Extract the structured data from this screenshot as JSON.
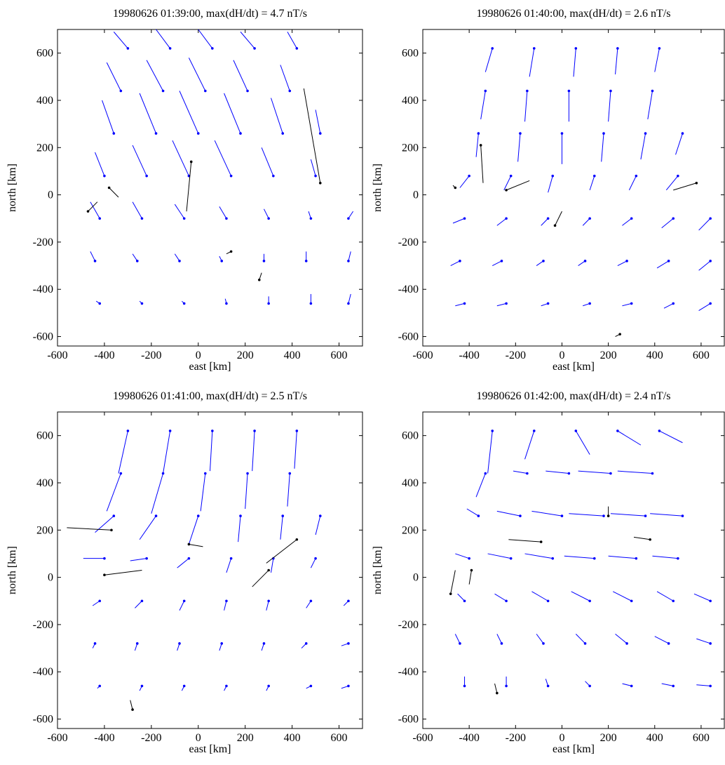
{
  "chart_data": [
    {
      "type": "quiver",
      "title": "19980626 01:39:00, max(dH/dt) = 4.7 nT/s",
      "xlabel": "east [km]",
      "ylabel": "north [km]",
      "xlim": [
        -600,
        700
      ],
      "ylim": [
        -640,
        700
      ],
      "xticks": [
        -600,
        -400,
        -200,
        0,
        200,
        400,
        600
      ],
      "yticks": [
        -600,
        -400,
        -200,
        0,
        200,
        400,
        600
      ],
      "series": [
        {
          "color": "#0000ff",
          "x": [
            -300,
            -120,
            60,
            240,
            420,
            -330,
            -150,
            30,
            210,
            390,
            -360,
            -180,
            0,
            180,
            360,
            520,
            -400,
            -220,
            -40,
            140,
            320,
            500,
            -420,
            -240,
            -60,
            120,
            300,
            480,
            640,
            -440,
            -260,
            -80,
            100,
            280,
            460,
            640,
            -420,
            -240,
            -60,
            120,
            300,
            480,
            640
          ],
          "y": [
            620,
            620,
            620,
            620,
            620,
            440,
            440,
            440,
            440,
            440,
            260,
            260,
            260,
            260,
            260,
            260,
            80,
            80,
            80,
            80,
            80,
            80,
            -100,
            -100,
            -100,
            -100,
            -100,
            -100,
            -100,
            -280,
            -280,
            -280,
            -280,
            -280,
            -280,
            -280,
            -460,
            -460,
            -460,
            -460,
            -460,
            -460,
            -460
          ],
          "u": [
            -60,
            -60,
            -60,
            -60,
            -40,
            -60,
            -70,
            -70,
            -60,
            -40,
            -50,
            -70,
            -80,
            -70,
            -50,
            -20,
            -40,
            -60,
            -70,
            -70,
            -50,
            -20,
            -40,
            -40,
            -40,
            -30,
            -20,
            -10,
            20,
            -20,
            -20,
            -20,
            -10,
            0,
            0,
            10,
            -15,
            -10,
            -10,
            -5,
            0,
            0,
            10
          ],
          "v": [
            70,
            80,
            80,
            70,
            70,
            120,
            130,
            140,
            130,
            110,
            140,
            170,
            180,
            170,
            150,
            100,
            100,
            130,
            150,
            150,
            120,
            70,
            70,
            70,
            60,
            50,
            40,
            30,
            30,
            40,
            30,
            30,
            20,
            30,
            40,
            40,
            10,
            10,
            10,
            20,
            30,
            40,
            40
          ]
        },
        {
          "color": "#000000",
          "x": [
            -470,
            -380,
            520,
            -30,
            140,
            260
          ],
          "y": [
            -70,
            30,
            50,
            140,
            -240,
            -360
          ],
          "u": [
            40,
            40,
            -70,
            -20,
            -20,
            10
          ],
          "v": [
            40,
            -40,
            400,
            -210,
            -10,
            30
          ]
        }
      ]
    },
    {
      "type": "quiver",
      "title": "19980626 01:40:00, max(dH/dt) = 2.6 nT/s",
      "xlabel": "east [km]",
      "ylabel": "north [km]",
      "xlim": [
        -600,
        700
      ],
      "ylim": [
        -640,
        700
      ],
      "xticks": [
        -600,
        -400,
        -200,
        0,
        200,
        400,
        600
      ],
      "yticks": [
        -600,
        -400,
        -200,
        0,
        200,
        400,
        600
      ],
      "series": [
        {
          "color": "#0000ff",
          "x": [
            -300,
            -120,
            60,
            240,
            420,
            -330,
            -150,
            30,
            210,
            390,
            -360,
            -180,
            0,
            180,
            360,
            520,
            -400,
            -220,
            -40,
            140,
            320,
            500,
            -420,
            -240,
            -60,
            120,
            300,
            480,
            640,
            -440,
            -260,
            -80,
            100,
            280,
            460,
            640,
            -420,
            -240,
            -60,
            120,
            300,
            480,
            640
          ],
          "y": [
            620,
            620,
            620,
            620,
            620,
            440,
            440,
            440,
            440,
            440,
            260,
            260,
            260,
            260,
            260,
            260,
            80,
            80,
            80,
            80,
            80,
            80,
            -100,
            -100,
            -100,
            -100,
            -100,
            -100,
            -100,
            -280,
            -280,
            -280,
            -280,
            -280,
            -280,
            -280,
            -460,
            -460,
            -460,
            -460,
            -460,
            -460,
            -460
          ],
          "u": [
            -30,
            -20,
            -10,
            -10,
            -20,
            -20,
            -10,
            0,
            -10,
            -20,
            -10,
            -10,
            0,
            -10,
            -20,
            -30,
            -40,
            -30,
            -20,
            -20,
            -30,
            -50,
            -50,
            -40,
            -30,
            -30,
            -40,
            -50,
            -50,
            -40,
            -40,
            -30,
            -30,
            -40,
            -50,
            -50,
            -40,
            -40,
            -30,
            -30,
            -40,
            -40,
            -50
          ],
          "v": [
            -100,
            -120,
            -120,
            -110,
            -100,
            -120,
            -130,
            -130,
            -130,
            -120,
            -100,
            -120,
            -130,
            -120,
            -110,
            -90,
            -50,
            -60,
            -70,
            -60,
            -60,
            -60,
            -20,
            -30,
            -30,
            -30,
            -30,
            -40,
            -50,
            -20,
            -20,
            -20,
            -20,
            -20,
            -30,
            -40,
            -10,
            -10,
            -10,
            -10,
            -10,
            -20,
            -30
          ]
        },
        {
          "color": "#000000",
          "x": [
            -460,
            -350,
            -240,
            580,
            -30,
            250
          ],
          "y": [
            30,
            210,
            20,
            50,
            -130,
            -590
          ],
          "u": [
            -10,
            10,
            100,
            -100,
            30,
            -20
          ],
          "v": [
            10,
            -160,
            40,
            -30,
            60,
            -10
          ]
        }
      ]
    },
    {
      "type": "quiver",
      "title": "19980626 01:41:00, max(dH/dt) = 2.5 nT/s",
      "xlabel": "east [km]",
      "ylabel": "north [km]",
      "xlim": [
        -600,
        700
      ],
      "ylim": [
        -640,
        700
      ],
      "xticks": [
        -600,
        -400,
        -200,
        0,
        200,
        400,
        600
      ],
      "yticks": [
        -600,
        -400,
        -200,
        0,
        200,
        400,
        600
      ],
      "series": [
        {
          "color": "#0000ff",
          "x": [
            -300,
            -120,
            60,
            240,
            420,
            -330,
            -150,
            30,
            210,
            390,
            -360,
            -180,
            0,
            180,
            360,
            520,
            -400,
            -220,
            -40,
            140,
            320,
            500,
            -420,
            -240,
            -60,
            120,
            300,
            480,
            640,
            -440,
            -260,
            -80,
            100,
            280,
            460,
            640,
            -420,
            -240,
            -60,
            120,
            300,
            480,
            640
          ],
          "y": [
            620,
            620,
            620,
            620,
            620,
            440,
            440,
            440,
            440,
            440,
            260,
            260,
            260,
            260,
            260,
            260,
            80,
            80,
            80,
            80,
            80,
            80,
            -100,
            -100,
            -100,
            -100,
            -100,
            -100,
            -100,
            -280,
            -280,
            -280,
            -280,
            -280,
            -280,
            -280,
            -460,
            -460,
            -460,
            -460,
            -460,
            -460,
            -460
          ],
          "u": [
            -40,
            -30,
            -10,
            -10,
            -10,
            -60,
            -50,
            -20,
            -10,
            -10,
            -80,
            -70,
            -40,
            -10,
            -10,
            -20,
            -90,
            -70,
            -50,
            -20,
            -10,
            -20,
            -30,
            -30,
            -20,
            -10,
            -10,
            -20,
            -20,
            -10,
            -10,
            -10,
            -10,
            -10,
            -20,
            -30,
            -10,
            -10,
            -10,
            -10,
            -10,
            -20,
            -30
          ],
          "v": [
            -180,
            -180,
            -170,
            -170,
            -160,
            -160,
            -170,
            -160,
            -150,
            -140,
            -70,
            -100,
            -120,
            -110,
            -100,
            -80,
            0,
            -10,
            -40,
            -60,
            -60,
            -40,
            -20,
            -30,
            -40,
            -40,
            -40,
            -30,
            -20,
            -20,
            -30,
            -30,
            -30,
            -30,
            -20,
            -10,
            -10,
            -20,
            -20,
            -20,
            -20,
            -10,
            -10
          ]
        },
        {
          "color": "#000000",
          "x": [
            -400,
            -370,
            -40,
            300,
            420,
            -280
          ],
          "y": [
            10,
            200,
            140,
            30,
            160,
            -560
          ],
          "u": [
            160,
            -190,
            60,
            -70,
            -130,
            -10
          ],
          "v": [
            20,
            10,
            -10,
            -70,
            -100,
            40
          ]
        }
      ]
    },
    {
      "type": "quiver",
      "title": "19980626 01:42:00, max(dH/dt) = 2.4 nT/s",
      "xlabel": "east [km]",
      "ylabel": "north [km]",
      "xlim": [
        -600,
        700
      ],
      "ylim": [
        -640,
        700
      ],
      "xticks": [
        -600,
        -400,
        -200,
        0,
        200,
        400,
        600
      ],
      "yticks": [
        -600,
        -400,
        -200,
        0,
        200,
        400,
        600
      ],
      "series": [
        {
          "color": "#0000ff",
          "x": [
            -300,
            -120,
            60,
            240,
            420,
            -330,
            -150,
            30,
            210,
            390,
            -360,
            -180,
            0,
            180,
            360,
            520,
            -400,
            -220,
            -40,
            140,
            320,
            500,
            -420,
            -240,
            -60,
            120,
            300,
            480,
            640,
            -440,
            -260,
            -80,
            100,
            280,
            460,
            640,
            -420,
            -240,
            -60,
            120,
            300,
            480,
            640
          ],
          "y": [
            620,
            620,
            620,
            620,
            620,
            440,
            440,
            440,
            440,
            440,
            260,
            260,
            260,
            260,
            260,
            260,
            80,
            80,
            80,
            80,
            80,
            80,
            -100,
            -100,
            -100,
            -100,
            -100,
            -100,
            -100,
            -280,
            -280,
            -280,
            -280,
            -280,
            -280,
            -280,
            -460,
            -460,
            -460,
            -460,
            -460,
            -460,
            -460
          ],
          "u": [
            -20,
            -40,
            60,
            100,
            100,
            -40,
            -60,
            -100,
            -140,
            -150,
            -50,
            -100,
            -130,
            -150,
            -150,
            -140,
            -60,
            -100,
            -120,
            -130,
            -120,
            -110,
            -30,
            -50,
            -70,
            -80,
            -80,
            -70,
            -70,
            -20,
            -20,
            -30,
            -40,
            -50,
            -60,
            -60,
            0,
            0,
            -10,
            -20,
            -40,
            -50,
            -60
          ],
          "v": [
            -180,
            -120,
            -100,
            -60,
            -50,
            -100,
            10,
            10,
            10,
            10,
            30,
            20,
            20,
            10,
            10,
            10,
            20,
            20,
            20,
            10,
            10,
            10,
            30,
            30,
            40,
            40,
            40,
            40,
            30,
            40,
            40,
            40,
            40,
            40,
            30,
            20,
            40,
            40,
            30,
            20,
            10,
            10,
            5
          ]
        },
        {
          "color": "#000000",
          "x": [
            -480,
            -390,
            -90,
            380,
            200,
            -280
          ],
          "y": [
            -70,
            30,
            150,
            160,
            260,
            -490
          ],
          "u": [
            20,
            -10,
            -140,
            -70,
            0,
            -10
          ],
          "v": [
            100,
            -60,
            10,
            10,
            40,
            40
          ]
        }
      ]
    }
  ]
}
